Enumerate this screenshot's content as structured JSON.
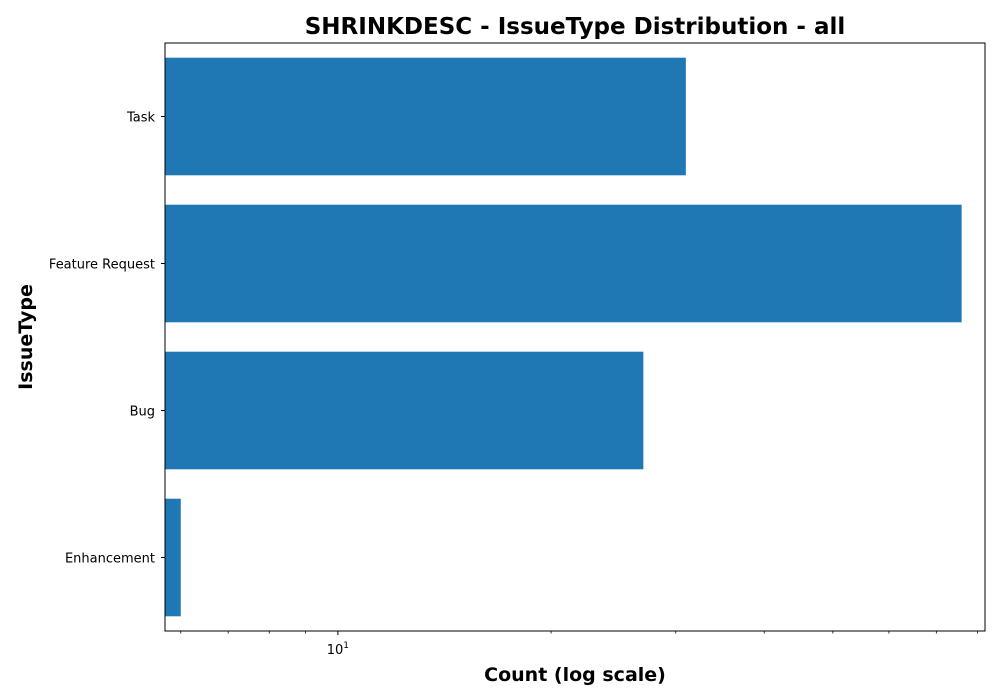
{
  "chart_data": {
    "type": "bar",
    "orientation": "horizontal",
    "title": "SHRINKDESC - IssueType Distribution - all",
    "xlabel": "Count (log scale)",
    "ylabel": "IssueType",
    "x_scale": "log",
    "xlim": [
      5.7,
      82
    ],
    "categories": [
      "Task",
      "Feature Request",
      "Bug",
      "Enhancement"
    ],
    "values": [
      31,
      76,
      27,
      6
    ],
    "x_major_ticks": [
      10
    ],
    "x_major_tick_labels_base": "10",
    "x_major_tick_labels_exp": "1",
    "x_minor_ticks": [
      6,
      7,
      8,
      9,
      20,
      30,
      40,
      50,
      60,
      70,
      80
    ],
    "bar_color": "#1f77b4",
    "grid": false,
    "legend": "none"
  }
}
